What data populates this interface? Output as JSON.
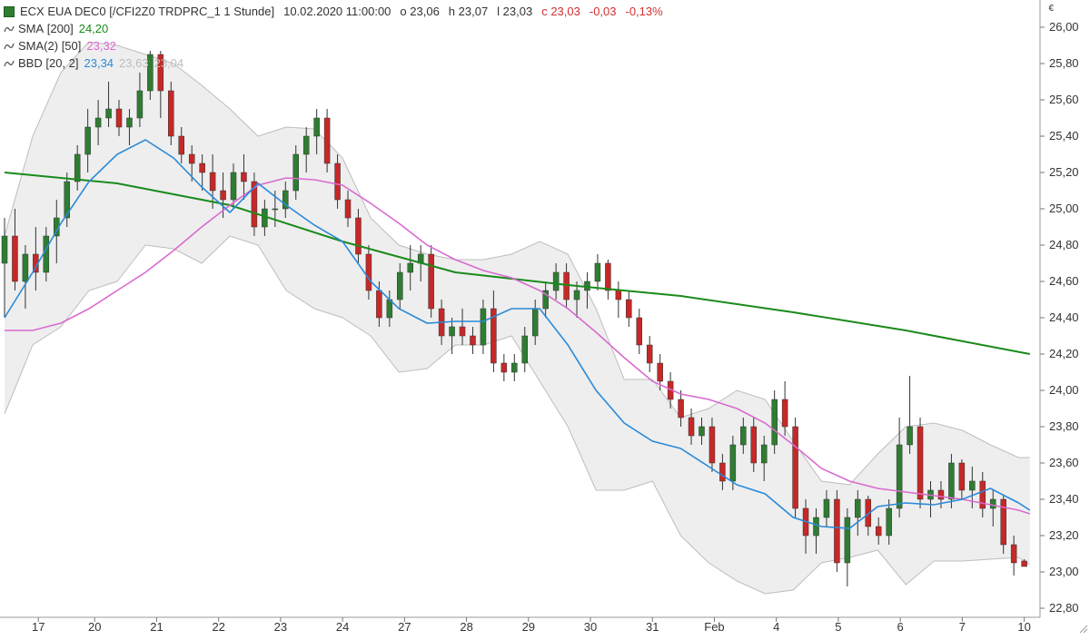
{
  "header": {
    "instrument": "ECX EUA DEC0 [/CFI2Z0 TRDPRC_1 1 Stunde]",
    "datetime": "10.02.2020 11:00:00",
    "open_label": "o 23,06",
    "high_label": "h 23,07",
    "low_label": "l 23,03",
    "close_label": "c 23,03",
    "change_abs": "-0,03",
    "change_pct": "-0,13%",
    "currency": "€"
  },
  "indicators": [
    {
      "label": "SMA",
      "param": "[200]",
      "value": "24,20",
      "color": "#1a8a1a"
    },
    {
      "label": "SMA(2)",
      "param": "[50]",
      "value": "23,32",
      "color": "#d96ad0"
    },
    {
      "label": "BBD",
      "param": "[20, 2]",
      "value": "23,34",
      "upper": "23,63",
      "lower": "23,04",
      "color": "#2a8ad8",
      "band_color": "#c8c8c8"
    }
  ],
  "chart_data": {
    "type": "candlestick",
    "title": "",
    "xlabel": "",
    "ylabel": "",
    "ylim": [
      22.75,
      26.1
    ],
    "y_ticks": [
      22.8,
      23.0,
      23.2,
      23.4,
      23.6,
      23.8,
      24.0,
      24.2,
      24.4,
      24.6,
      24.8,
      25.0,
      25.2,
      25.4,
      25.6,
      25.8,
      26.0
    ],
    "y_tick_labels": [
      "22,80",
      "23,00",
      "23,20",
      "23,40",
      "23,60",
      "23,80",
      "24,00",
      "24,20",
      "24,40",
      "24,60",
      "24,80",
      "25,00",
      "25,20",
      "25,40",
      "25,60",
      "25,80",
      "26,00"
    ],
    "x_ticks": [
      {
        "bar": 6,
        "label": "17"
      },
      {
        "bar": 16,
        "label": "20"
      },
      {
        "bar": 27,
        "label": "21"
      },
      {
        "bar": 38,
        "label": "22"
      },
      {
        "bar": 49,
        "label": "23"
      },
      {
        "bar": 60,
        "label": "24"
      },
      {
        "bar": 71,
        "label": "27"
      },
      {
        "bar": 82,
        "label": "28"
      },
      {
        "bar": 93,
        "label": "29"
      },
      {
        "bar": 104,
        "label": "30"
      },
      {
        "bar": 115,
        "label": "31"
      },
      {
        "bar": 126,
        "label": "Feb"
      },
      {
        "bar": 137,
        "label": "4"
      },
      {
        "bar": 148,
        "label": "5"
      },
      {
        "bar": 159,
        "label": "6"
      },
      {
        "bar": 170,
        "label": "7"
      },
      {
        "bar": 181,
        "label": "10"
      }
    ],
    "grid": false,
    "colors": {
      "up": "#2e7d32",
      "down": "#c62828",
      "wick": "#333333",
      "band_fill": "#eeeeee",
      "band_line": "#bdbdbd"
    },
    "series": [
      {
        "name": "SMA [200]",
        "color": "#1a8a1a",
        "x": [
          0,
          20,
          40,
          60,
          80,
          100,
          120,
          140,
          160,
          182
        ],
        "values": [
          25.2,
          25.14,
          25.02,
          24.82,
          24.65,
          24.58,
          24.52,
          24.43,
          24.33,
          24.2
        ]
      },
      {
        "name": "SMA(2) [50]",
        "color": "#d96ad0",
        "x": [
          0,
          5,
          10,
          15,
          20,
          25,
          30,
          35,
          40,
          45,
          50,
          55,
          60,
          65,
          70,
          75,
          80,
          85,
          90,
          95,
          100,
          105,
          110,
          115,
          120,
          125,
          130,
          135,
          140,
          145,
          150,
          155,
          160,
          165,
          170,
          175,
          180,
          182
        ],
        "values": [
          24.33,
          24.33,
          24.37,
          24.45,
          24.55,
          24.65,
          24.77,
          24.9,
          25.02,
          25.13,
          25.17,
          25.16,
          25.13,
          25.03,
          24.92,
          24.8,
          24.72,
          24.66,
          24.62,
          24.55,
          24.45,
          24.32,
          24.18,
          24.05,
          23.98,
          23.95,
          23.9,
          23.82,
          23.7,
          23.57,
          23.5,
          23.46,
          23.44,
          23.42,
          23.4,
          23.37,
          23.34,
          23.32
        ]
      },
      {
        "name": "BBD [20, 2]",
        "color": "#2a8ad8",
        "x": [
          0,
          5,
          10,
          15,
          20,
          25,
          30,
          35,
          40,
          45,
          50,
          55,
          60,
          65,
          70,
          75,
          80,
          85,
          90,
          95,
          100,
          105,
          110,
          115,
          120,
          125,
          130,
          135,
          140,
          145,
          150,
          155,
          160,
          165,
          170,
          175,
          180,
          182
        ],
        "values": [
          24.4,
          24.65,
          24.92,
          25.15,
          25.3,
          25.38,
          25.28,
          25.12,
          24.98,
          25.14,
          25.02,
          24.91,
          24.82,
          24.6,
          24.45,
          24.37,
          24.38,
          24.38,
          24.45,
          24.45,
          24.25,
          24.0,
          23.82,
          23.72,
          23.68,
          23.58,
          23.48,
          23.43,
          23.3,
          23.25,
          23.24,
          23.36,
          23.38,
          23.37,
          23.4,
          23.46,
          23.38,
          23.34
        ]
      },
      {
        "name": "BBD upper",
        "color": "#bdbdbd",
        "x": [
          0,
          5,
          10,
          15,
          20,
          25,
          30,
          35,
          40,
          45,
          50,
          55,
          60,
          65,
          70,
          75,
          80,
          85,
          90,
          95,
          100,
          105,
          110,
          115,
          120,
          125,
          130,
          135,
          140,
          145,
          150,
          155,
          160,
          165,
          170,
          175,
          180,
          182
        ],
        "values": [
          24.85,
          25.4,
          25.75,
          25.92,
          25.9,
          25.85,
          25.8,
          25.68,
          25.55,
          25.4,
          25.45,
          25.44,
          25.28,
          24.95,
          24.8,
          24.75,
          24.72,
          24.72,
          24.75,
          24.82,
          24.75,
          24.45,
          24.06,
          24.06,
          23.85,
          23.9,
          24.0,
          23.95,
          23.72,
          23.5,
          23.48,
          23.65,
          23.8,
          23.82,
          23.78,
          23.7,
          23.63,
          23.63
        ]
      },
      {
        "name": "BBD lower",
        "color": "#bdbdbd",
        "x": [
          0,
          5,
          10,
          15,
          20,
          25,
          30,
          35,
          40,
          45,
          50,
          55,
          60,
          65,
          70,
          75,
          80,
          85,
          90,
          95,
          100,
          105,
          110,
          115,
          120,
          125,
          130,
          135,
          140,
          145,
          150,
          155,
          160,
          165,
          170,
          175,
          180,
          182
        ],
        "values": [
          23.87,
          24.25,
          24.35,
          24.55,
          24.6,
          24.8,
          24.78,
          24.7,
          24.85,
          24.8,
          24.55,
          24.45,
          24.4,
          24.3,
          24.1,
          24.12,
          24.25,
          24.25,
          24.3,
          24.05,
          23.8,
          23.45,
          23.45,
          23.5,
          23.2,
          23.05,
          22.95,
          22.88,
          22.9,
          23.05,
          23.08,
          23.12,
          22.93,
          23.06,
          23.06,
          23.07,
          23.08,
          23.04
        ]
      }
    ],
    "ohlc": [
      [
        24.7,
        24.95,
        24.4,
        24.85
      ],
      [
        24.85,
        25.0,
        24.55,
        24.6
      ],
      [
        24.6,
        24.8,
        24.45,
        24.75
      ],
      [
        24.75,
        24.9,
        24.55,
        24.65
      ],
      [
        24.65,
        24.9,
        24.6,
        24.85
      ],
      [
        24.85,
        25.05,
        24.7,
        24.95
      ],
      [
        24.95,
        25.2,
        24.9,
        25.15
      ],
      [
        25.15,
        25.35,
        25.1,
        25.3
      ],
      [
        25.3,
        25.55,
        25.2,
        25.45
      ],
      [
        25.45,
        25.6,
        25.35,
        25.5
      ],
      [
        25.5,
        25.7,
        25.45,
        25.55
      ],
      [
        25.55,
        25.6,
        25.4,
        25.45
      ],
      [
        25.45,
        25.55,
        25.35,
        25.5
      ],
      [
        25.5,
        25.75,
        25.45,
        25.65
      ],
      [
        25.65,
        25.87,
        25.6,
        25.85
      ],
      [
        25.85,
        25.87,
        25.5,
        25.65
      ],
      [
        25.65,
        25.7,
        25.35,
        25.4
      ],
      [
        25.4,
        25.45,
        25.25,
        25.3
      ],
      [
        25.3,
        25.35,
        25.15,
        25.25
      ],
      [
        25.25,
        25.3,
        25.1,
        25.2
      ],
      [
        25.2,
        25.3,
        25.0,
        25.1
      ],
      [
        25.1,
        25.2,
        24.95,
        25.05
      ],
      [
        25.05,
        25.25,
        25.0,
        25.2
      ],
      [
        25.2,
        25.3,
        25.05,
        25.15
      ],
      [
        25.15,
        25.2,
        24.85,
        24.9
      ],
      [
        24.9,
        25.05,
        24.85,
        25.0
      ],
      [
        25.0,
        25.1,
        24.9,
        25.0
      ],
      [
        25.0,
        25.15,
        24.95,
        25.1
      ],
      [
        25.1,
        25.35,
        25.05,
        25.3
      ],
      [
        25.3,
        25.45,
        25.2,
        25.4
      ],
      [
        25.4,
        25.55,
        25.3,
        25.5
      ],
      [
        25.5,
        25.55,
        25.2,
        25.25
      ],
      [
        25.25,
        25.3,
        25.0,
        25.05
      ],
      [
        25.05,
        25.1,
        24.9,
        24.95
      ],
      [
        24.95,
        25.0,
        24.7,
        24.75
      ],
      [
        24.75,
        24.8,
        24.5,
        24.55
      ],
      [
        24.55,
        24.6,
        24.35,
        24.4
      ],
      [
        24.4,
        24.55,
        24.35,
        24.5
      ],
      [
        24.5,
        24.7,
        24.45,
        24.65
      ],
      [
        24.65,
        24.8,
        24.55,
        24.7
      ],
      [
        24.7,
        24.8,
        24.6,
        24.75
      ],
      [
        24.75,
        24.8,
        24.4,
        24.45
      ],
      [
        24.45,
        24.5,
        24.25,
        24.3
      ],
      [
        24.3,
        24.4,
        24.2,
        24.35
      ],
      [
        24.35,
        24.45,
        24.25,
        24.3
      ],
      [
        24.3,
        24.35,
        24.2,
        24.25
      ],
      [
        24.25,
        24.5,
        24.2,
        24.45
      ],
      [
        24.45,
        24.55,
        24.1,
        24.15
      ],
      [
        24.15,
        24.2,
        24.05,
        24.1
      ],
      [
        24.1,
        24.2,
        24.05,
        24.15
      ],
      [
        24.15,
        24.35,
        24.1,
        24.3
      ],
      [
        24.3,
        24.5,
        24.25,
        24.45
      ],
      [
        24.45,
        24.6,
        24.4,
        24.55
      ],
      [
        24.55,
        24.7,
        24.5,
        24.65
      ],
      [
        24.65,
        24.7,
        24.45,
        24.5
      ],
      [
        24.5,
        24.6,
        24.4,
        24.55
      ],
      [
        24.55,
        24.65,
        24.45,
        24.6
      ],
      [
        24.6,
        24.75,
        24.55,
        24.7
      ],
      [
        24.7,
        24.72,
        24.5,
        24.55
      ],
      [
        24.55,
        24.6,
        24.4,
        24.5
      ],
      [
        24.5,
        24.55,
        24.35,
        24.4
      ],
      [
        24.4,
        24.45,
        24.2,
        24.25
      ],
      [
        24.25,
        24.3,
        24.1,
        24.15
      ],
      [
        24.15,
        24.2,
        24.0,
        24.05
      ],
      [
        24.05,
        24.1,
        23.9,
        23.95
      ],
      [
        23.95,
        24.0,
        23.8,
        23.85
      ],
      [
        23.85,
        23.9,
        23.7,
        23.75
      ],
      [
        23.75,
        23.85,
        23.7,
        23.8
      ],
      [
        23.8,
        23.85,
        23.55,
        23.6
      ],
      [
        23.6,
        23.65,
        23.45,
        23.5
      ],
      [
        23.5,
        23.75,
        23.45,
        23.7
      ],
      [
        23.7,
        23.85,
        23.65,
        23.8
      ],
      [
        23.8,
        23.85,
        23.55,
        23.6
      ],
      [
        23.6,
        23.75,
        23.5,
        23.7
      ],
      [
        23.7,
        24.0,
        23.65,
        23.95
      ],
      [
        23.95,
        24.05,
        23.75,
        23.8
      ],
      [
        23.8,
        23.85,
        23.3,
        23.35
      ],
      [
        23.35,
        23.4,
        23.1,
        23.2
      ],
      [
        23.2,
        23.35,
        23.1,
        23.3
      ],
      [
        23.3,
        23.45,
        23.25,
        23.4
      ],
      [
        23.4,
        23.45,
        23.0,
        23.05
      ],
      [
        23.05,
        23.35,
        22.92,
        23.3
      ],
      [
        23.3,
        23.45,
        23.2,
        23.4
      ],
      [
        23.4,
        23.42,
        23.2,
        23.25
      ],
      [
        23.25,
        23.3,
        23.15,
        23.2
      ],
      [
        23.2,
        23.4,
        23.15,
        23.35
      ],
      [
        23.35,
        23.85,
        23.3,
        23.7
      ],
      [
        23.7,
        24.08,
        23.65,
        23.8
      ],
      [
        23.8,
        23.85,
        23.35,
        23.4
      ],
      [
        23.4,
        23.5,
        23.3,
        23.45
      ],
      [
        23.45,
        23.5,
        23.35,
        23.4
      ],
      [
        23.4,
        23.65,
        23.35,
        23.6
      ],
      [
        23.6,
        23.62,
        23.4,
        23.45
      ],
      [
        23.45,
        23.58,
        23.35,
        23.5
      ],
      [
        23.5,
        23.55,
        23.3,
        23.35
      ],
      [
        23.35,
        23.45,
        23.25,
        23.4
      ],
      [
        23.4,
        23.42,
        23.1,
        23.15
      ],
      [
        23.15,
        23.2,
        22.98,
        23.05
      ],
      [
        23.06,
        23.07,
        23.03,
        23.03
      ]
    ]
  }
}
